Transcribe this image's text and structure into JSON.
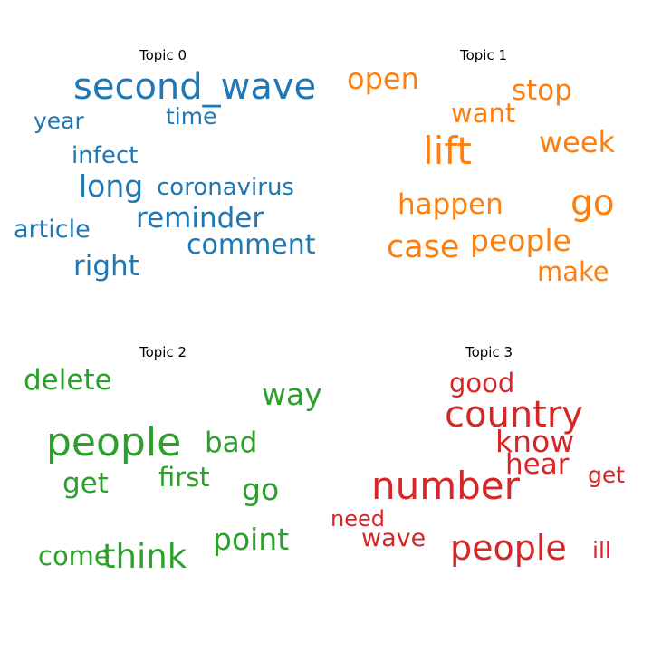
{
  "colors": {
    "topic0": "#1f77b4",
    "topic1": "#ff7f0e",
    "topic2": "#2ca02c",
    "topic3": "#d62728"
  },
  "topics": [
    {
      "title": "Topic 0",
      "words": [
        "second_wave",
        "time",
        "year",
        "infect",
        "long",
        "coronavirus",
        "reminder",
        "article",
        "comment",
        "right"
      ]
    },
    {
      "title": "Topic 1",
      "words": [
        "open",
        "stop",
        "want",
        "lift",
        "week",
        "go",
        "happen",
        "people",
        "case",
        "make"
      ]
    },
    {
      "title": "Topic 2",
      "words": [
        "delete",
        "way",
        "people",
        "bad",
        "get",
        "first",
        "go",
        "point",
        "come",
        "think"
      ]
    },
    {
      "title": "Topic 3",
      "words": [
        "good",
        "country",
        "know",
        "hear",
        "get",
        "number",
        "need",
        "wave",
        "people",
        "ill"
      ]
    }
  ]
}
